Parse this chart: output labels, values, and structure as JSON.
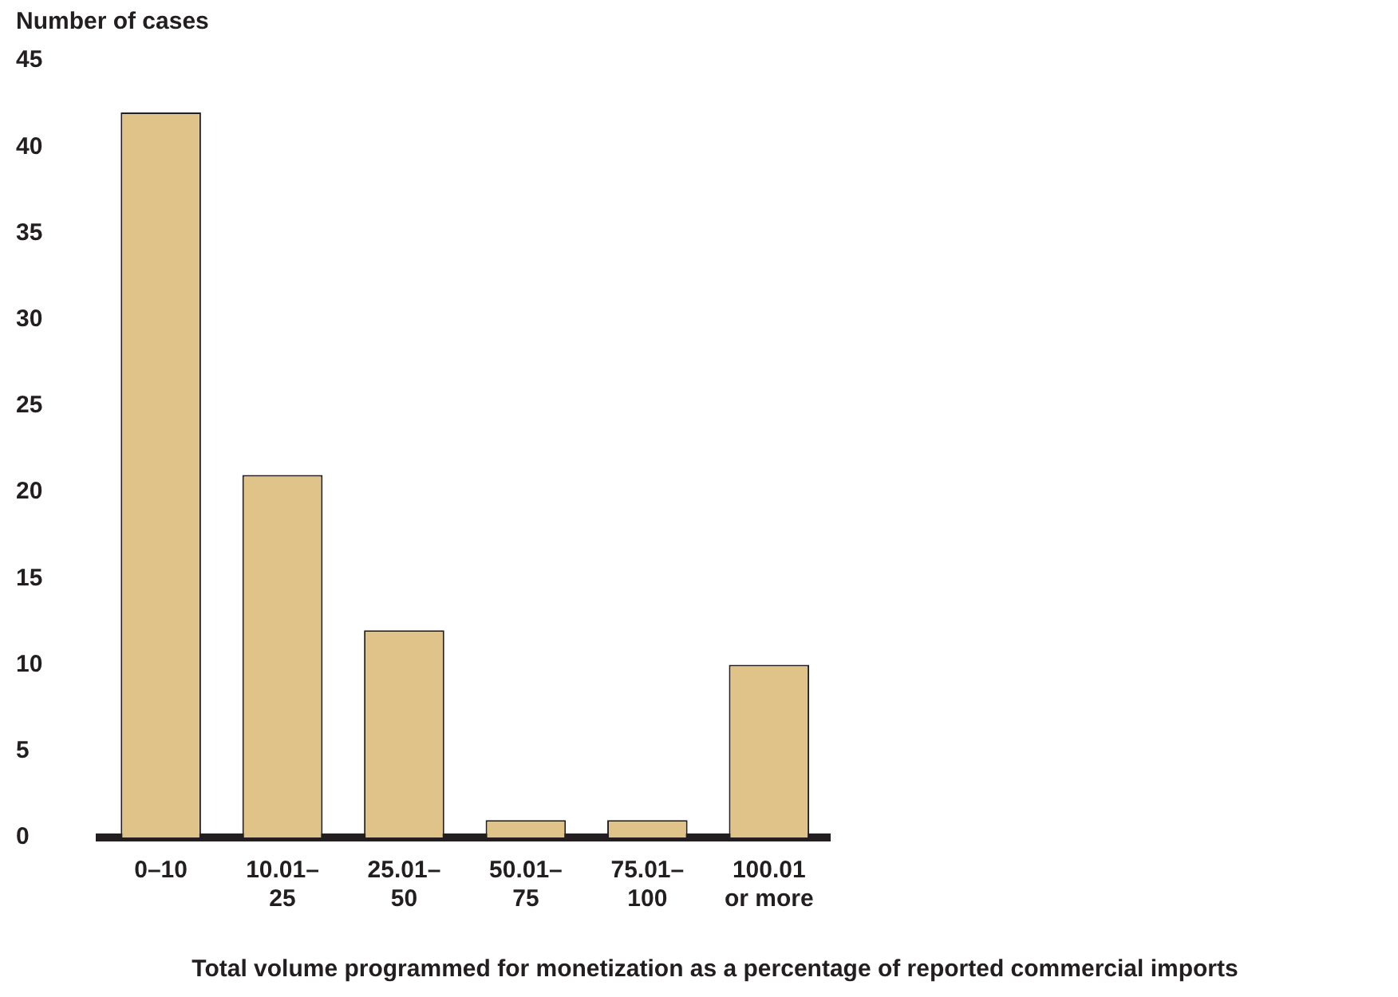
{
  "chart_data": {
    "type": "bar",
    "ylabel": "Number of cases",
    "xlabel": "Total volume programmed for monetization as a percentage of reported commercial imports",
    "categories": [
      "0–10",
      "10.01–25",
      "25.01–50",
      "50.01–75",
      "75.01–100",
      "100.01 or more"
    ],
    "values": [
      42,
      21,
      12,
      1,
      1,
      10
    ],
    "color": "#dfc388",
    "ylim": [
      0,
      45
    ],
    "yticks": [
      0,
      5,
      10,
      15,
      20,
      25,
      30,
      35,
      40,
      45
    ],
    "grid": false,
    "legend": false
  }
}
